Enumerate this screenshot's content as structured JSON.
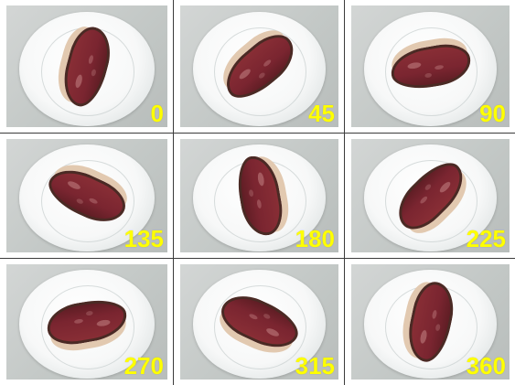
{
  "panels": [
    {
      "angle_label": "0",
      "rotation_deg": 0
    },
    {
      "angle_label": "45",
      "rotation_deg": 45
    },
    {
      "angle_label": "90",
      "rotation_deg": 90
    },
    {
      "angle_label": "135",
      "rotation_deg": 135
    },
    {
      "angle_label": "180",
      "rotation_deg": 180
    },
    {
      "angle_label": "225",
      "rotation_deg": 225
    },
    {
      "angle_label": "270",
      "rotation_deg": 270
    },
    {
      "angle_label": "315",
      "rotation_deg": 315
    },
    {
      "angle_label": "360",
      "rotation_deg": 360
    }
  ],
  "colors": {
    "label": "#ffff00",
    "plate": "#ffffff",
    "background": "#c8cccb",
    "meat": "#7a2530",
    "fat": "#e2c9b0",
    "grid_line": "#3b3b3b"
  }
}
